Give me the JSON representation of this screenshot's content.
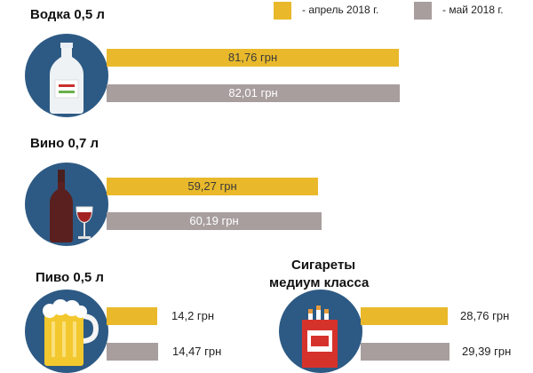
{
  "legend": {
    "april": "- апрель 2018 г.",
    "may": "- май 2018 г."
  },
  "colors": {
    "april": "#e9b92b",
    "may": "#a89e9e",
    "circle": "#2d5a84"
  },
  "icons": [
    "vodka-bottle-icon",
    "wine-bottle-icon",
    "beer-mug-icon",
    "cigarette-pack-icon"
  ],
  "chart_data": [
    {
      "type": "bar",
      "title": "Водка 0,5 л",
      "series": [
        {
          "name": "- апрель 2018 г.",
          "values": [
            81.76
          ],
          "labels": [
            "81,76 грн"
          ]
        },
        {
          "name": "- май 2018 г.",
          "values": [
            82.01
          ],
          "labels": [
            "82,01 грн"
          ]
        }
      ]
    },
    {
      "type": "bar",
      "title": "Вино 0,7 л",
      "series": [
        {
          "name": "- апрель 2018 г.",
          "values": [
            59.27
          ],
          "labels": [
            "59,27 грн"
          ]
        },
        {
          "name": "- май 2018 г.",
          "values": [
            60.19
          ],
          "labels": [
            "60,19 грн"
          ]
        }
      ]
    },
    {
      "type": "bar",
      "title": "Пиво 0,5 л",
      "series": [
        {
          "name": "- апрель 2018 г.",
          "values": [
            14.2
          ],
          "labels": [
            "14,2 грн"
          ]
        },
        {
          "name": "- май 2018 г.",
          "values": [
            14.47
          ],
          "labels": [
            "14,47 грн"
          ]
        }
      ]
    },
    {
      "type": "bar",
      "title": "Сигареты медиум класса",
      "series": [
        {
          "name": "- апрель 2018 г.",
          "values": [
            28.76
          ],
          "labels": [
            "28,76 грн"
          ]
        },
        {
          "name": "- май 2018 г.",
          "values": [
            29.39
          ],
          "labels": [
            "29,39 грн"
          ]
        }
      ]
    }
  ]
}
